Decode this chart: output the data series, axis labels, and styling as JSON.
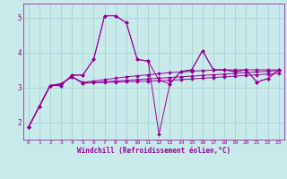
{
  "background_color": "#c8eaea",
  "grid_color": "#a0d0d0",
  "line_color": "#990099",
  "marker_color": "#990099",
  "xlabel": "Windchill (Refroidissement éolien,°C)",
  "xlim": [
    -0.5,
    23.5
  ],
  "ylim": [
    1.5,
    5.4
  ],
  "yticks": [
    2,
    3,
    4,
    5
  ],
  "xticks": [
    0,
    1,
    2,
    3,
    4,
    5,
    6,
    7,
    8,
    9,
    10,
    11,
    12,
    13,
    14,
    15,
    16,
    17,
    18,
    19,
    20,
    21,
    22,
    23
  ],
  "series": [
    [
      1.85,
      2.45,
      3.05,
      3.05,
      3.35,
      3.35,
      3.8,
      5.05,
      5.05,
      4.85,
      3.8,
      3.75,
      3.2,
      3.1,
      3.45,
      3.5,
      4.05,
      3.5,
      3.5,
      3.45,
      3.5,
      3.15,
      3.25,
      3.5
    ],
    [
      1.85,
      2.45,
      3.05,
      3.05,
      3.35,
      3.35,
      3.8,
      5.05,
      5.05,
      4.85,
      3.8,
      3.75,
      1.65,
      3.1,
      3.45,
      3.5,
      4.05,
      3.5,
      3.5,
      3.45,
      3.5,
      3.15,
      3.25,
      3.5
    ],
    [
      1.85,
      2.45,
      3.05,
      3.1,
      3.3,
      3.12,
      3.14,
      3.16,
      3.18,
      3.2,
      3.22,
      3.24,
      3.26,
      3.28,
      3.3,
      3.32,
      3.34,
      3.36,
      3.38,
      3.4,
      3.42,
      3.44,
      3.46,
      3.48
    ],
    [
      1.85,
      2.45,
      3.05,
      3.1,
      3.3,
      3.14,
      3.18,
      3.22,
      3.26,
      3.3,
      3.33,
      3.36,
      3.39,
      3.42,
      3.44,
      3.46,
      3.48,
      3.49,
      3.5,
      3.5,
      3.5,
      3.5,
      3.5,
      3.5
    ],
    [
      1.85,
      2.45,
      3.05,
      3.1,
      3.3,
      3.12,
      3.13,
      3.14,
      3.15,
      3.16,
      3.17,
      3.18,
      3.19,
      3.2,
      3.22,
      3.24,
      3.26,
      3.28,
      3.3,
      3.32,
      3.34,
      3.36,
      3.38,
      3.4
    ]
  ],
  "linewidth": 0.7,
  "markersize": 2.0,
  "xlabel_fontsize": 5.5,
  "tick_fontsize": 4.5
}
